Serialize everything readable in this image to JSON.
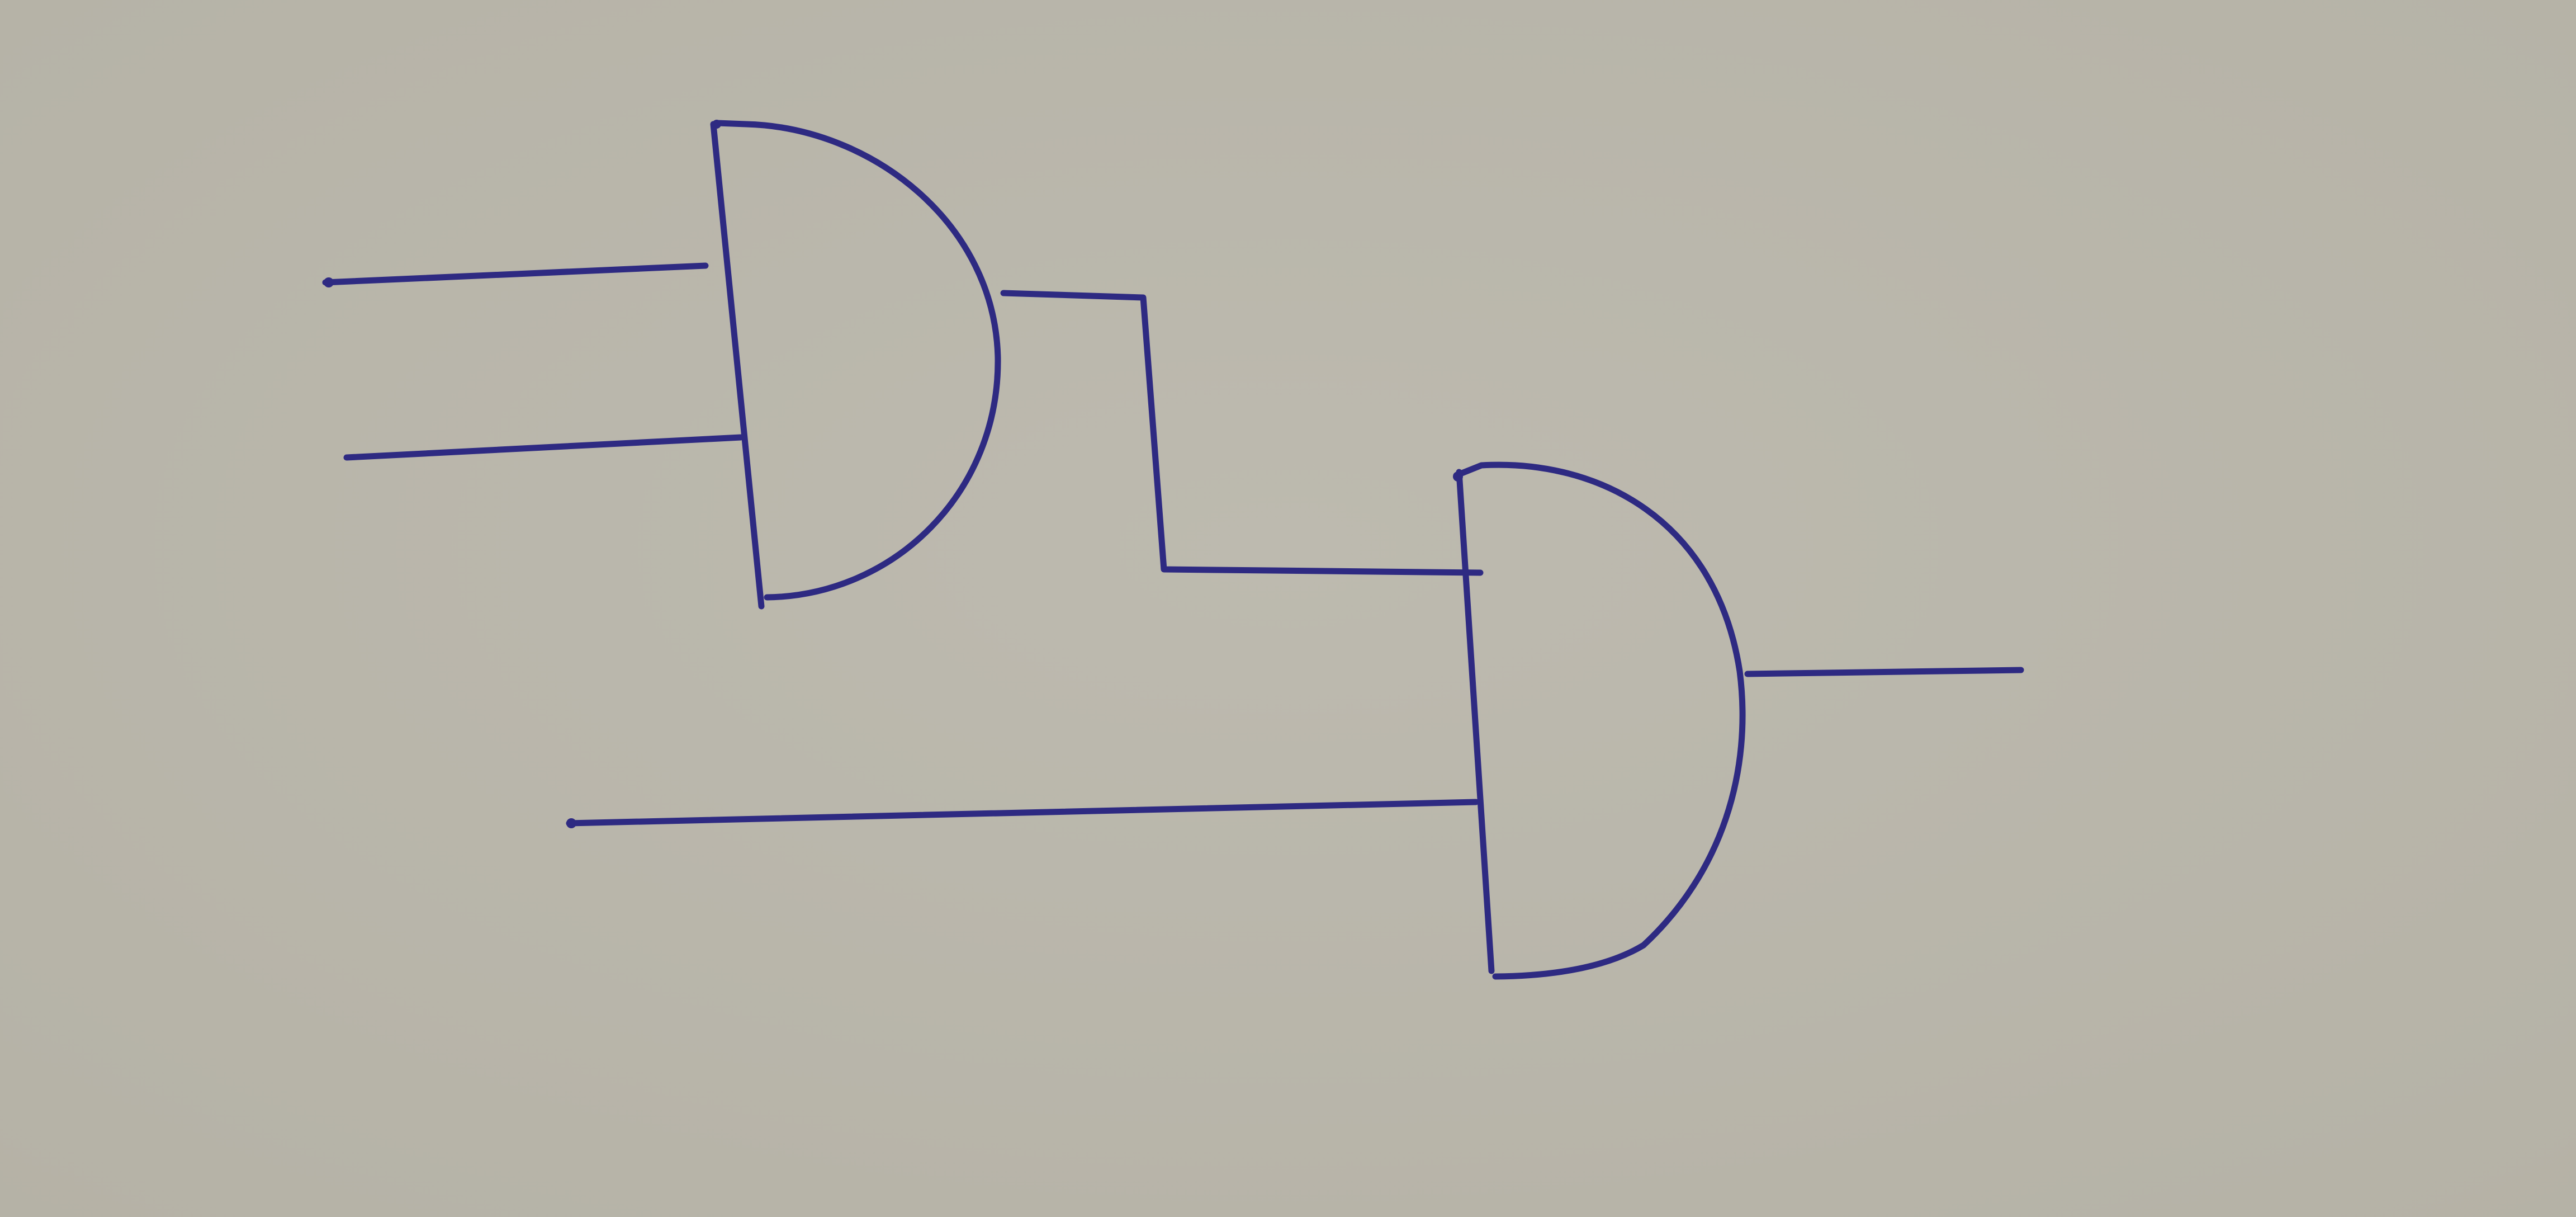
{
  "diagram": {
    "kind": "logic-circuit",
    "medium": "ink on paper",
    "colors": {
      "paper": "#b5b2a6",
      "paper_light": "#bdbaaf",
      "ink": "#2e2a82"
    },
    "gates": [
      {
        "id": "gate-1",
        "type": "AND",
        "inputs": 2
      },
      {
        "id": "gate-2",
        "type": "AND",
        "inputs": 2
      }
    ],
    "connections": [
      {
        "from": "input-a",
        "to": "gate-1"
      },
      {
        "from": "input-b",
        "to": "gate-1"
      },
      {
        "from": "gate-1",
        "to": "gate-2"
      },
      {
        "from": "input-c",
        "to": "gate-2"
      },
      {
        "from": "gate-2",
        "to": "output"
      }
    ]
  }
}
